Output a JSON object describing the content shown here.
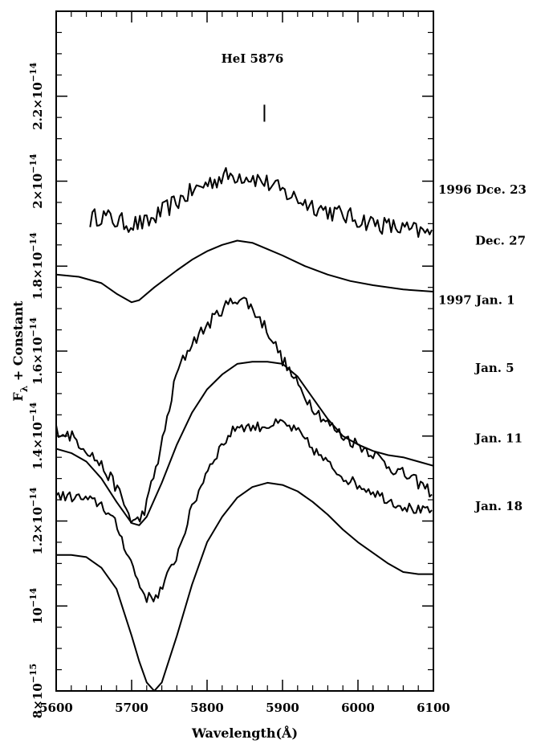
{
  "chart_data": {
    "type": "line",
    "title": "",
    "xlabel": "Wavelength(Å)",
    "ylabel_main": "F",
    "ylabel_sub": "λ",
    "ylabel_rest": " + Constant",
    "xlim": [
      5600,
      6100
    ],
    "ylim": [
      8e-15,
      2.4e-14
    ],
    "grid": false,
    "legend": "none",
    "x_ticks": [
      {
        "value": 5600,
        "label": "5600"
      },
      {
        "value": 5700,
        "label": "5700"
      },
      {
        "value": 5800,
        "label": "5800"
      },
      {
        "value": 5900,
        "label": "5900"
      },
      {
        "value": 6000,
        "label": "6000"
      },
      {
        "value": 6100,
        "label": "6100"
      }
    ],
    "y_ticks": [
      {
        "value": 8e-15,
        "mant": "8",
        "label": "8×10",
        "exp": "−15"
      },
      {
        "value": 1e-14,
        "mant": "",
        "label": "10",
        "exp": "−14"
      },
      {
        "value": 1.2e-14,
        "mant": "1.2",
        "label": "1.2×10",
        "exp": "−14"
      },
      {
        "value": 1.4e-14,
        "mant": "1.4",
        "label": "1.4×10",
        "exp": "−14"
      },
      {
        "value": 1.6e-14,
        "mant": "1.6",
        "label": "1.6×10",
        "exp": "−14"
      },
      {
        "value": 1.8e-14,
        "mant": "1.8",
        "label": "1.8×10",
        "exp": "−14"
      },
      {
        "value": 2e-14,
        "mant": "2",
        "label": "2×10",
        "exp": "−14"
      },
      {
        "value": 2.2e-14,
        "mant": "2.2",
        "label": "2.2×10",
        "exp": "−14"
      }
    ],
    "line_annotation": {
      "text": "HeI 5876",
      "x": 5876,
      "y_from": 2.14e-14,
      "y_to": 2.18e-14
    },
    "series": [
      {
        "date_label": "1996 Dce. 23",
        "label_y": 1.98e-14,
        "noise": 4.5e-16,
        "x": [
          5645,
          5660,
          5680,
          5700,
          5720,
          5750,
          5780,
          5800,
          5820,
          5840,
          5860,
          5880,
          5900,
          5930,
          5960,
          6000,
          6050,
          6100
        ],
        "y": [
          1.91e-14,
          1.92e-14,
          1.905e-14,
          1.9e-14,
          1.9e-14,
          1.94e-14,
          1.975e-14,
          1.995e-14,
          2.01e-14,
          2.015e-14,
          2.01e-14,
          1.995e-14,
          1.975e-14,
          1.95e-14,
          1.93e-14,
          1.91e-14,
          1.89e-14,
          1.875e-14
        ]
      },
      {
        "date_label": "Dec. 27",
        "label_y": 1.86e-14,
        "noise": 0,
        "x": [
          5600,
          5630,
          5660,
          5680,
          5700,
          5710,
          5730,
          5760,
          5780,
          5800,
          5820,
          5840,
          5860,
          5880,
          5900,
          5930,
          5960,
          5990,
          6020,
          6060,
          6100
        ],
        "y": [
          1.78e-14,
          1.775e-14,
          1.76e-14,
          1.735e-14,
          1.715e-14,
          1.72e-14,
          1.75e-14,
          1.79e-14,
          1.815e-14,
          1.835e-14,
          1.85e-14,
          1.86e-14,
          1.855e-14,
          1.84e-14,
          1.825e-14,
          1.8e-14,
          1.78e-14,
          1.765e-14,
          1.755e-14,
          1.745e-14,
          1.74e-14
        ]
      },
      {
        "date_label": "1997 Jan. 1",
        "label_y": 1.72e-14,
        "noise": 3e-16,
        "x": [
          5600,
          5620,
          5640,
          5660,
          5680,
          5690,
          5700,
          5710,
          5720,
          5740,
          5760,
          5780,
          5800,
          5820,
          5840,
          5850,
          5860,
          5880,
          5900,
          5920,
          5940,
          5960,
          5980,
          6000,
          6020,
          6040,
          6060,
          6080,
          6100
        ],
        "y": [
          1.415e-14,
          1.4e-14,
          1.37e-14,
          1.33e-14,
          1.28e-14,
          1.24e-14,
          1.2e-14,
          1.2e-14,
          1.24e-14,
          1.38e-14,
          1.55e-14,
          1.62e-14,
          1.66e-14,
          1.7e-14,
          1.725e-14,
          1.72e-14,
          1.7e-14,
          1.65e-14,
          1.58e-14,
          1.52e-14,
          1.47e-14,
          1.43e-14,
          1.4e-14,
          1.38e-14,
          1.36e-14,
          1.33e-14,
          1.31e-14,
          1.29e-14,
          1.265e-14
        ]
      },
      {
        "date_label": "Jan. 5",
        "label_y": 1.56e-14,
        "noise": 0,
        "x": [
          5600,
          5620,
          5640,
          5660,
          5680,
          5700,
          5710,
          5720,
          5740,
          5760,
          5780,
          5800,
          5820,
          5840,
          5860,
          5880,
          5900,
          5920,
          5940,
          5960,
          5980,
          6000,
          6020,
          6040,
          6060,
          6080,
          6100
        ],
        "y": [
          1.37e-14,
          1.36e-14,
          1.34e-14,
          1.3e-14,
          1.245e-14,
          1.195e-14,
          1.19e-14,
          1.21e-14,
          1.29e-14,
          1.38e-14,
          1.455e-14,
          1.51e-14,
          1.545e-14,
          1.57e-14,
          1.575e-14,
          1.575e-14,
          1.57e-14,
          1.54e-14,
          1.49e-14,
          1.44e-14,
          1.4e-14,
          1.38e-14,
          1.365e-14,
          1.355e-14,
          1.35e-14,
          1.34e-14,
          1.33e-14
        ]
      },
      {
        "date_label": "Jan. 11",
        "label_y": 1.395e-14,
        "noise": 2.5e-16,
        "x": [
          5600,
          5630,
          5660,
          5680,
          5700,
          5710,
          5720,
          5730,
          5740,
          5760,
          5780,
          5800,
          5820,
          5840,
          5860,
          5880,
          5900,
          5920,
          5940,
          5960,
          5980,
          6000,
          6020,
          6040,
          6060,
          6080,
          6100
        ],
        "y": [
          1.26e-14,
          1.255e-14,
          1.24e-14,
          1.19e-14,
          1.1e-14,
          1.05e-14,
          1.02e-14,
          1.02e-14,
          1.04e-14,
          1.12e-14,
          1.23e-14,
          1.32e-14,
          1.38e-14,
          1.425e-14,
          1.42e-14,
          1.425e-14,
          1.43e-14,
          1.41e-14,
          1.37e-14,
          1.335e-14,
          1.305e-14,
          1.285e-14,
          1.27e-14,
          1.25e-14,
          1.235e-14,
          1.225e-14,
          1.22e-14
        ]
      },
      {
        "date_label": "Jan. 18",
        "label_y": 1.235e-14,
        "noise": 0,
        "x": [
          5600,
          5620,
          5640,
          5660,
          5680,
          5700,
          5710,
          5720,
          5730,
          5740,
          5760,
          5780,
          5800,
          5820,
          5840,
          5860,
          5880,
          5900,
          5920,
          5940,
          5960,
          5980,
          6000,
          6020,
          6040,
          6060,
          6080,
          6100
        ],
        "y": [
          1.12e-14,
          1.12e-14,
          1.115e-14,
          1.09e-14,
          1.04e-14,
          9.3e-15,
          8.7e-15,
          8.2e-15,
          8e-15,
          8.2e-15,
          9.3e-15,
          1.05e-14,
          1.15e-14,
          1.21e-14,
          1.255e-14,
          1.28e-14,
          1.29e-14,
          1.285e-14,
          1.27e-14,
          1.245e-14,
          1.215e-14,
          1.18e-14,
          1.15e-14,
          1.125e-14,
          1.1e-14,
          1.08e-14,
          1.075e-14,
          1.075e-14
        ]
      }
    ]
  }
}
